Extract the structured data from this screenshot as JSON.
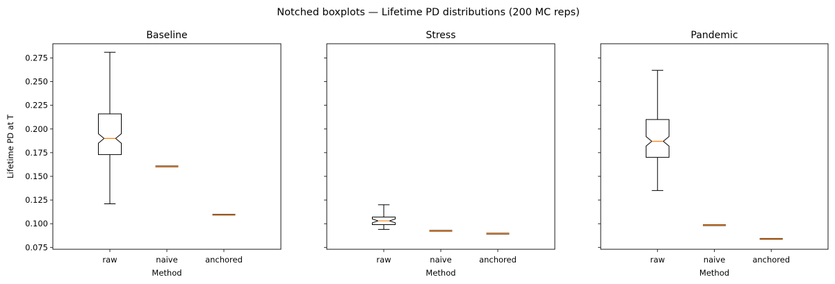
{
  "figure": {
    "suptitle": "Notched boxplots — Lifetime PD distributions (200 MC reps)"
  },
  "chart_data": [
    {
      "type": "boxplot",
      "title": "Baseline",
      "xlabel": "Method",
      "ylabel": "Lifetime PD at T",
      "ylim": [
        0.073,
        0.29
      ],
      "yticks": [
        "0.075",
        "0.100",
        "0.125",
        "0.150",
        "0.175",
        "0.200",
        "0.225",
        "0.250",
        "0.275"
      ],
      "categories": [
        "raw",
        "naive",
        "anchored"
      ],
      "boxes": [
        {
          "whislo": 0.121,
          "q1": 0.173,
          "med": 0.19,
          "q3": 0.216,
          "whishi": 0.281,
          "notch_lo": 0.185,
          "notch_hi": 0.195
        },
        {
          "whislo": 0.1605,
          "q1": 0.1605,
          "med": 0.1605,
          "q3": 0.1605,
          "whishi": 0.1605,
          "notch_lo": 0.1605,
          "notch_hi": 0.1605
        },
        {
          "whislo": 0.1095,
          "q1": 0.1095,
          "med": 0.1095,
          "q3": 0.1095,
          "whishi": 0.1095,
          "notch_lo": 0.1095,
          "notch_hi": 0.1095
        }
      ]
    },
    {
      "type": "boxplot",
      "title": "Stress",
      "xlabel": "Method",
      "ylabel": "",
      "ylim": [
        0.073,
        0.29
      ],
      "categories": [
        "raw",
        "naive",
        "anchored"
      ],
      "boxes": [
        {
          "whislo": 0.094,
          "q1": 0.099,
          "med": 0.103,
          "q3": 0.107,
          "whishi": 0.12,
          "notch_lo": 0.101,
          "notch_hi": 0.105
        },
        {
          "whislo": 0.0925,
          "q1": 0.0925,
          "med": 0.0925,
          "q3": 0.0925,
          "whishi": 0.0925,
          "notch_lo": 0.0925,
          "notch_hi": 0.0925
        },
        {
          "whislo": 0.0895,
          "q1": 0.0895,
          "med": 0.0895,
          "q3": 0.0895,
          "whishi": 0.0895,
          "notch_lo": 0.0895,
          "notch_hi": 0.0895
        }
      ]
    },
    {
      "type": "boxplot",
      "title": "Pandemic",
      "xlabel": "Method",
      "ylabel": "",
      "ylim": [
        0.073,
        0.29
      ],
      "categories": [
        "raw",
        "naive",
        "anchored"
      ],
      "boxes": [
        {
          "whislo": 0.135,
          "q1": 0.17,
          "med": 0.187,
          "q3": 0.21,
          "whishi": 0.262,
          "notch_lo": 0.182,
          "notch_hi": 0.192
        },
        {
          "whislo": 0.0985,
          "q1": 0.0985,
          "med": 0.0985,
          "q3": 0.0985,
          "whishi": 0.0985,
          "notch_lo": 0.0985,
          "notch_hi": 0.0985
        },
        {
          "whislo": 0.084,
          "q1": 0.084,
          "med": 0.084,
          "q3": 0.084,
          "whishi": 0.084,
          "notch_lo": 0.084,
          "notch_hi": 0.084
        }
      ]
    }
  ],
  "colors": {
    "box": "#000000",
    "median": "#ff7f0e",
    "background": "#ffffff"
  }
}
